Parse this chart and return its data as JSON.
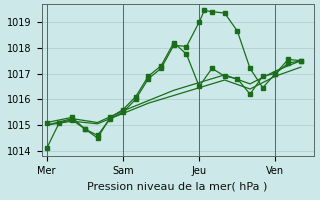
{
  "background_color": "#cce8e8",
  "grid_color": "#aacccc",
  "line_color": "#1a6e1a",
  "xlabel": "Pression niveau de la mer( hPa )",
  "ylim": [
    1013.8,
    1019.7
  ],
  "yticks": [
    1014,
    1015,
    1016,
    1017,
    1018,
    1019
  ],
  "day_labels": [
    "Mer",
    "Sam",
    "Jeu",
    "Ven"
  ],
  "day_positions": [
    0,
    3,
    6,
    9
  ],
  "xmin": -0.2,
  "xmax": 10.5,
  "series1_x": [
    0,
    0.5,
    1.0,
    1.5,
    2.0,
    2.5,
    3.0,
    3.5,
    4.0,
    4.5,
    5.0,
    5.5,
    6.0,
    6.2,
    6.5,
    7.0,
    7.5,
    8.0,
    8.5,
    9.0,
    9.5,
    10.0
  ],
  "series1_y": [
    1014.1,
    1015.1,
    1015.2,
    1014.85,
    1014.6,
    1015.25,
    1015.5,
    1016.0,
    1016.8,
    1017.2,
    1018.1,
    1018.05,
    1019.0,
    1019.45,
    1019.4,
    1019.35,
    1018.65,
    1017.2,
    1016.45,
    1017.0,
    1017.55,
    1017.5
  ],
  "series2_x": [
    0,
    1.0,
    1.5,
    2.0,
    2.5,
    3.0,
    3.5,
    4.0,
    4.5,
    5.0,
    5.5,
    6.0,
    6.5,
    7.0,
    7.5,
    8.0,
    8.5,
    9.0,
    9.5,
    10.0
  ],
  "series2_y": [
    1015.1,
    1015.3,
    1014.85,
    1014.5,
    1015.3,
    1015.6,
    1016.1,
    1016.9,
    1017.3,
    1018.2,
    1017.75,
    1016.5,
    1017.2,
    1016.9,
    1016.8,
    1016.2,
    1016.9,
    1017.0,
    1017.4,
    1017.5
  ],
  "series3_x": [
    0,
    1,
    2,
    3,
    4,
    5,
    6,
    7,
    8,
    9,
    10
  ],
  "series3_y": [
    1015.0,
    1015.25,
    1015.1,
    1015.55,
    1015.95,
    1016.35,
    1016.65,
    1016.95,
    1016.6,
    1017.1,
    1017.5
  ],
  "series4_x": [
    0,
    1,
    2,
    3,
    4,
    5,
    6,
    7,
    8,
    9,
    10
  ],
  "series4_y": [
    1015.0,
    1015.15,
    1015.05,
    1015.45,
    1015.85,
    1016.15,
    1016.45,
    1016.75,
    1016.4,
    1016.9,
    1017.25
  ],
  "xlabel_fontsize": 8,
  "tick_fontsize": 7,
  "lw": 0.9,
  "ms": 2.5
}
